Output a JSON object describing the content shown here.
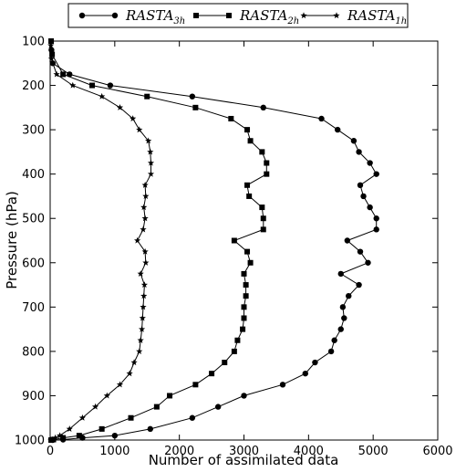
{
  "chart_data": {
    "type": "line",
    "title": "",
    "xlabel": "Number of assimilated data",
    "ylabel": "Pressure (hPa)",
    "xlim": [
      0,
      6000
    ],
    "ylim": [
      1000,
      100
    ],
    "y_inverted": true,
    "grid": false,
    "legend_position": "top, above plot",
    "x_ticks": [
      "0",
      "1000",
      "2000",
      "3000",
      "4000",
      "5000",
      "6000"
    ],
    "y_ticks": [
      "100",
      "200",
      "300",
      "400",
      "500",
      "600",
      "700",
      "800",
      "900",
      "1000"
    ],
    "series": [
      {
        "name": "RASTA3h",
        "label_main": "RASTA",
        "label_sub": "3h",
        "marker": "circle",
        "x": [
          20,
          40,
          300,
          930,
          2200,
          3300,
          4200,
          4450,
          4700,
          4780,
          4950,
          5050,
          4800,
          4850,
          4950,
          5050,
          5050,
          4600,
          4800,
          4920,
          4500,
          4780,
          4620,
          4530,
          4550,
          4500,
          4400,
          4350,
          4100,
          3950,
          3600,
          3000,
          2600,
          2200,
          1550,
          1000,
          500,
          200,
          40
        ],
        "y": [
          120,
          150,
          175,
          200,
          225,
          250,
          275,
          300,
          325,
          350,
          375,
          400,
          425,
          450,
          475,
          500,
          525,
          550,
          575,
          600,
          625,
          650,
          675,
          700,
          725,
          750,
          775,
          800,
          825,
          850,
          875,
          900,
          925,
          950,
          975,
          990,
          995,
          999,
          1000
        ]
      },
      {
        "name": "RASTA2h",
        "label_main": "RASTA",
        "label_sub": "2h",
        "marker": "square",
        "x": [
          15,
          30,
          200,
          650,
          1500,
          2250,
          2800,
          3050,
          3100,
          3280,
          3350,
          3350,
          3050,
          3080,
          3280,
          3300,
          3300,
          2850,
          3050,
          3100,
          3000,
          3030,
          3030,
          3000,
          3000,
          2980,
          2900,
          2850,
          2700,
          2500,
          2250,
          1850,
          1650,
          1250,
          800,
          450,
          200,
          50,
          15
        ],
        "y": [
          100,
          130,
          175,
          200,
          225,
          250,
          275,
          300,
          325,
          350,
          375,
          400,
          425,
          450,
          475,
          500,
          525,
          550,
          575,
          600,
          625,
          650,
          675,
          700,
          725,
          750,
          775,
          800,
          825,
          850,
          875,
          900,
          925,
          950,
          975,
          990,
          995,
          999,
          1000
        ]
      },
      {
        "name": "RASTA1h",
        "label_main": "RASTA",
        "label_sub": "1h",
        "marker": "star",
        "x": [
          10,
          20,
          100,
          350,
          800,
          1080,
          1280,
          1380,
          1520,
          1550,
          1560,
          1560,
          1470,
          1480,
          1450,
          1470,
          1440,
          1350,
          1470,
          1480,
          1400,
          1460,
          1450,
          1440,
          1430,
          1420,
          1400,
          1380,
          1300,
          1230,
          1080,
          880,
          700,
          500,
          300,
          150,
          80,
          30,
          10
        ],
        "y": [
          110,
          140,
          175,
          200,
          225,
          250,
          275,
          300,
          325,
          350,
          375,
          400,
          425,
          450,
          475,
          500,
          525,
          550,
          575,
          600,
          625,
          650,
          675,
          700,
          725,
          750,
          775,
          800,
          825,
          850,
          875,
          900,
          925,
          950,
          975,
          990,
          995,
          999,
          1000
        ]
      }
    ]
  }
}
